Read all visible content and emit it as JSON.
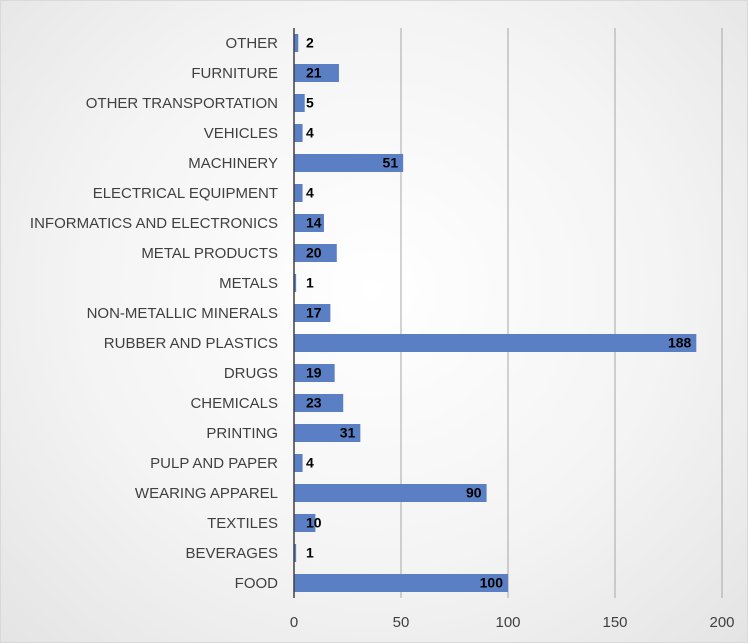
{
  "chart_data": {
    "type": "bar",
    "orientation": "horizontal",
    "title": "",
    "xlabel": "",
    "ylabel": "",
    "categories": [
      "OTHER",
      "FURNITURE",
      "OTHER TRANSPORTATION",
      "VEHICLES",
      "MACHINERY",
      "ELECTRICAL EQUIPMENT",
      "INFORMATICS AND ELECTRONICS",
      "METAL PRODUCTS",
      "METALS",
      "NON-METALLIC MINERALS",
      "RUBBER AND PLASTICS",
      "DRUGS",
      "CHEMICALS",
      "PRINTING",
      "PULP AND PAPER",
      "WEARING APPAREL",
      "TEXTILES",
      "BEVERAGES",
      "FOOD"
    ],
    "values": [
      2,
      21,
      5,
      4,
      51,
      4,
      14,
      20,
      1,
      17,
      188,
      19,
      23,
      31,
      4,
      90,
      10,
      1,
      100
    ],
    "xlim": [
      0,
      200
    ],
    "xticks": [
      0,
      50,
      100,
      150,
      200
    ],
    "grid": "vertical gridlines",
    "legend": "none",
    "bar_color": "#5b7fc4",
    "gridline_color": "#a6a6a6",
    "axis_color": "#404040"
  }
}
